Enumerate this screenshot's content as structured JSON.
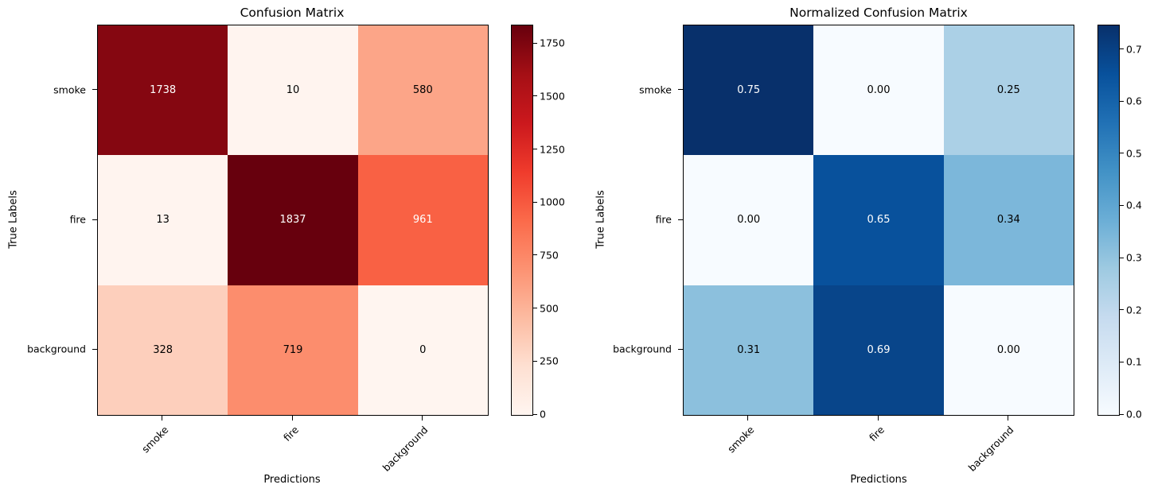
{
  "page": {
    "background_color": "#ffffff",
    "text_color": "#000000"
  },
  "chart_data": [
    {
      "type": "heatmap",
      "title": "Confusion Matrix",
      "xlabel": "Predictions",
      "ylabel": "True Labels",
      "x_categories": [
        "smoke",
        "fire",
        "background"
      ],
      "y_categories": [
        "smoke",
        "fire",
        "background"
      ],
      "values": [
        [
          1738,
          10,
          580
        ],
        [
          13,
          1837,
          961
        ],
        [
          328,
          719,
          0
        ]
      ],
      "cell_labels": [
        [
          "1738",
          "10",
          "580"
        ],
        [
          "13",
          "1837",
          "961"
        ],
        [
          "328",
          "719",
          "0"
        ]
      ],
      "cell_colors": [
        [
          "#850711",
          "#fff4ef",
          "#fca588"
        ],
        [
          "#fff4ef",
          "#67000d",
          "#f96144"
        ],
        [
          "#fdcfbc",
          "#fc8d6d",
          "#fff5f0"
        ]
      ],
      "cell_text_colors": [
        [
          "#ffffff",
          "#000000",
          "#000000"
        ],
        [
          "#000000",
          "#ffffff",
          "#ffffff"
        ],
        [
          "#000000",
          "#000000",
          "#000000"
        ]
      ],
      "colormap": "Reds",
      "grid": false,
      "colorbar": {
        "vmin": 0,
        "vmax": 1837,
        "tick_values": [
          0,
          250,
          500,
          750,
          1000,
          1250,
          1500,
          1750
        ],
        "tick_labels": [
          "0",
          "250",
          "500",
          "750",
          "1000",
          "1250",
          "1500",
          "1750"
        ],
        "gradient_stops": [
          "#fff5f0",
          "#fee0d2",
          "#fcbba1",
          "#fc9272",
          "#fb6a4a",
          "#ef3b2c",
          "#cb181d",
          "#a50f15",
          "#67000d"
        ]
      }
    },
    {
      "type": "heatmap",
      "title": "Normalized Confusion Matrix",
      "xlabel": "Predictions",
      "ylabel": "True Labels",
      "x_categories": [
        "smoke",
        "fire",
        "background"
      ],
      "y_categories": [
        "smoke",
        "fire",
        "background"
      ],
      "values": [
        [
          0.75,
          0.0,
          0.25
        ],
        [
          0.0,
          0.65,
          0.34
        ],
        [
          0.31,
          0.69,
          0.0
        ]
      ],
      "cell_labels": [
        [
          "0.75",
          "0.00",
          "0.25"
        ],
        [
          "0.00",
          "0.65",
          "0.34"
        ],
        [
          "0.31",
          "0.69",
          "0.00"
        ]
      ],
      "cell_colors": [
        [
          "#08306b",
          "#f7fbff",
          "#abd0e6"
        ],
        [
          "#f7fbff",
          "#08519c",
          "#7cb7da"
        ],
        [
          "#8cc0dd",
          "#08458a",
          "#f7fbff"
        ]
      ],
      "cell_text_colors": [
        [
          "#ffffff",
          "#000000",
          "#000000"
        ],
        [
          "#000000",
          "#ffffff",
          "#000000"
        ],
        [
          "#000000",
          "#ffffff",
          "#000000"
        ]
      ],
      "colormap": "Blues",
      "grid": false,
      "colorbar": {
        "vmin": 0.0,
        "vmax": 0.7466,
        "tick_values": [
          0.0,
          0.1,
          0.2,
          0.3,
          0.4,
          0.5,
          0.6,
          0.7
        ],
        "tick_labels": [
          "0.0",
          "0.1",
          "0.2",
          "0.3",
          "0.4",
          "0.5",
          "0.6",
          "0.7"
        ],
        "gradient_stops": [
          "#f7fbff",
          "#deebf7",
          "#c6dbef",
          "#9ecae1",
          "#6baed6",
          "#4292c6",
          "#2171b5",
          "#08519c",
          "#08306b"
        ]
      }
    }
  ]
}
